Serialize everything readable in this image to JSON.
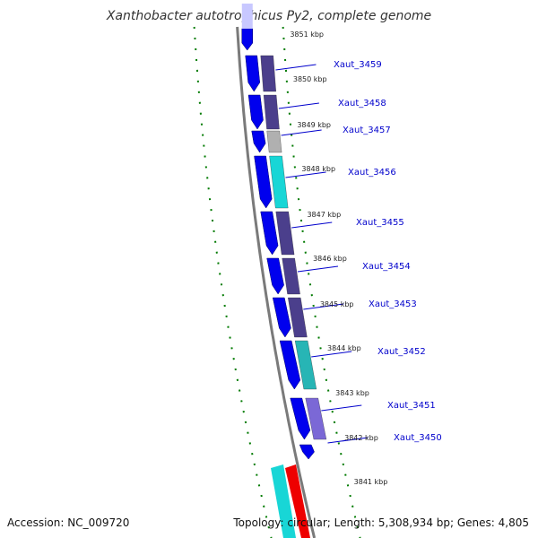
{
  "title": "Xanthobacter autotrophicus Py2, complete genome",
  "footer": {
    "accession": "Accession: NC_009720",
    "summary": "Topology: circular; Length: 5,308,934 bp; Genes: 4,805"
  },
  "colors": {
    "backbone": "#7a7a7a",
    "dotted_ring": "#007a00",
    "cds_strand": "#0000ee",
    "cds_faded": "#c8c8ff",
    "cog_dark": "#4b3f8c",
    "cog_cyan": "#18d6d6",
    "cog_teal": "#27b5b5",
    "cog_gray": "#b0b0b0",
    "cog_lavender": "#7b68d6",
    "rrna_red": "#ee0000",
    "label": "#0000cc"
  },
  "kbp_marks": [
    "3851 kbp",
    "3850 kbp",
    "3849 kbp",
    "3848 kbp",
    "3847 kbp",
    "3846 kbp",
    "3845 kbp",
    "3844 kbp",
    "3843 kbp",
    "3842 kbp",
    "3841 kbp"
  ],
  "genes": [
    {
      "name": "Xaut_3459",
      "cog": "cog_dark"
    },
    {
      "name": "Xaut_3458",
      "cog": "cog_dark"
    },
    {
      "name": "Xaut_3457",
      "cog": "cog_gray"
    },
    {
      "name": "Xaut_3456",
      "cog": "cog_cyan"
    },
    {
      "name": "Xaut_3455",
      "cog": "cog_dark"
    },
    {
      "name": "Xaut_3454",
      "cog": "cog_dark"
    },
    {
      "name": "Xaut_3453",
      "cog": "cog_dark"
    },
    {
      "name": "Xaut_3452",
      "cog": "cog_teal"
    },
    {
      "name": "Xaut_3451",
      "cog": "cog_lavender"
    },
    {
      "name": "Xaut_3450",
      "cog": "none"
    }
  ]
}
